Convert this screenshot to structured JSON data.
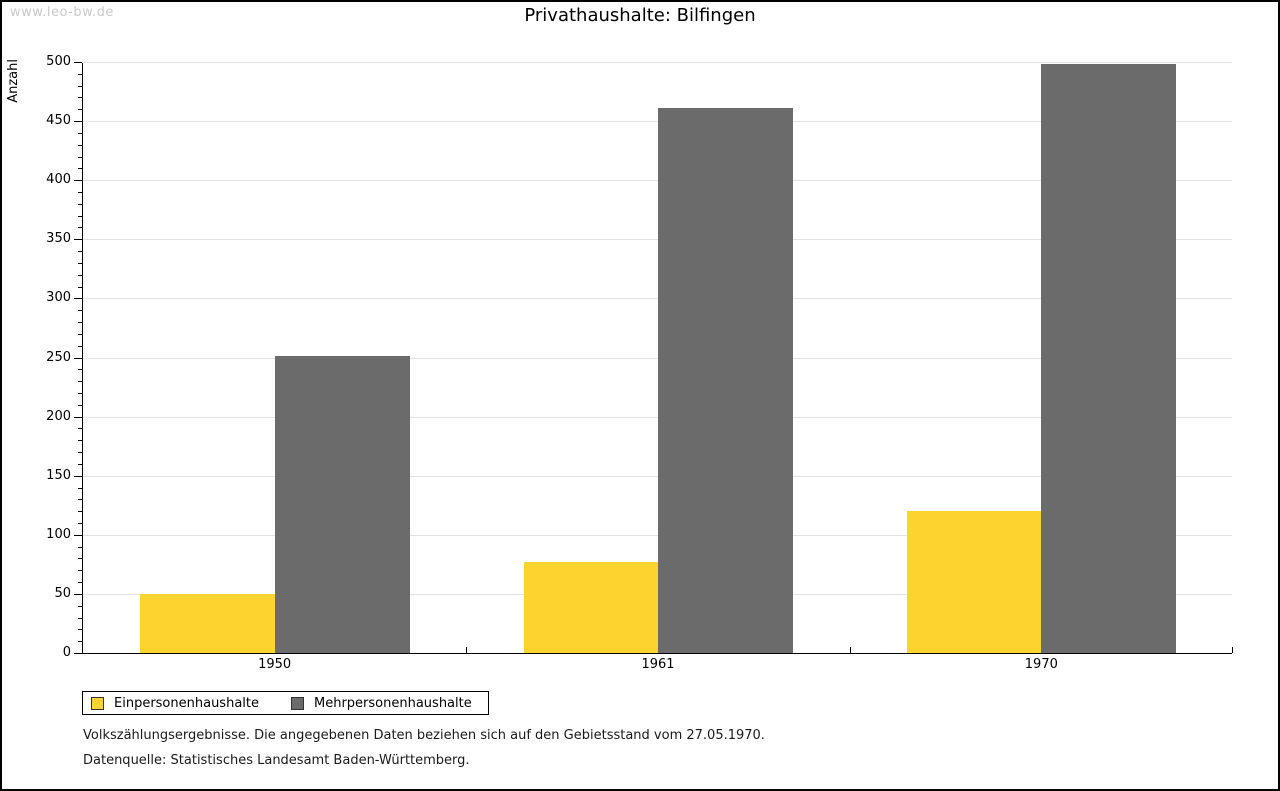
{
  "watermark": "www.leo-bw.de",
  "title": "Privathaushalte: Bilfingen",
  "chart_data": {
    "type": "bar",
    "title": "Privathaushalte: Bilfingen",
    "categories": [
      "1950",
      "1961",
      "1970"
    ],
    "series": [
      {
        "name": "Einpersonenhaushalte",
        "color": "#FCD32F",
        "values": [
          50,
          77,
          120
        ]
      },
      {
        "name": "Mehrpersonenhaushalte",
        "color": "#6B6B6B",
        "values": [
          251,
          461,
          498
        ]
      }
    ],
    "xlabel": "",
    "ylabel": "Anzahl",
    "ylim": [
      0,
      500
    ],
    "ytick_step": 50,
    "yminor_tick_step": 10,
    "grid": true,
    "legend_position": "bottom-left"
  },
  "footer": {
    "line1": "Volkszählungsergebnisse. Die angegebenen Daten beziehen sich auf den Gebietsstand vom 27.05.1970.",
    "line2": "Datenquelle: Statistisches Landesamt Baden-Württemberg."
  }
}
